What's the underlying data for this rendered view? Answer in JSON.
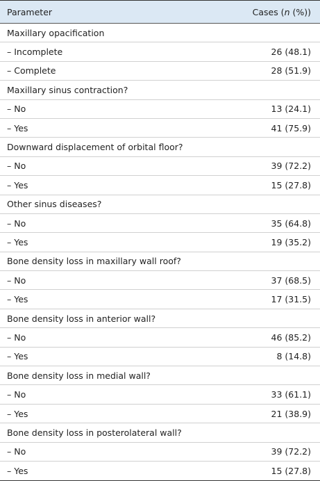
{
  "table": {
    "header": {
      "parameter": "Parameter",
      "cases": [
        "Cases (",
        "n",
        " (%))"
      ]
    },
    "groups": [
      {
        "label": "Maxillary opacification",
        "items": [
          {
            "label": "– Incomplete",
            "value": "26 (48.1)"
          },
          {
            "label": "– Complete",
            "value": "28 (51.9)"
          }
        ]
      },
      {
        "label": "Maxillary sinus contraction?",
        "items": [
          {
            "label": "– No",
            "value": "13 (24.1)"
          },
          {
            "label": "– Yes",
            "value": "41 (75.9)"
          }
        ]
      },
      {
        "label": "Downward displacement of orbital floor?",
        "items": [
          {
            "label": "– No",
            "value": "39 (72.2)"
          },
          {
            "label": "– Yes",
            "value": "15 (27.8)"
          }
        ]
      },
      {
        "label": "Other sinus diseases?",
        "items": [
          {
            "label": "– No",
            "value": "35 (64.8)"
          },
          {
            "label": "– Yes",
            "value": "19 (35.2)"
          }
        ]
      },
      {
        "label": "Bone density loss in maxillary wall roof?",
        "items": [
          {
            "label": "– No",
            "value": "37 (68.5)"
          },
          {
            "label": "– Yes",
            "value": "17 (31.5)"
          }
        ]
      },
      {
        "label": "Bone density loss in anterior wall?",
        "items": [
          {
            "label": "– No",
            "value": "46 (85.2)"
          },
          {
            "label": "– Yes",
            "value": "8 (14.8)"
          }
        ]
      },
      {
        "label": "Bone density loss in medial wall?",
        "items": [
          {
            "label": "– No",
            "value": "33 (61.1)"
          },
          {
            "label": "– Yes",
            "value": "21 (38.9)"
          }
        ]
      },
      {
        "label": "Bone density loss in posterolateral wall?",
        "items": [
          {
            "label": "– No",
            "value": "39 (72.2)"
          },
          {
            "label": "– Yes",
            "value": "15 (27.8)"
          }
        ]
      }
    ]
  }
}
